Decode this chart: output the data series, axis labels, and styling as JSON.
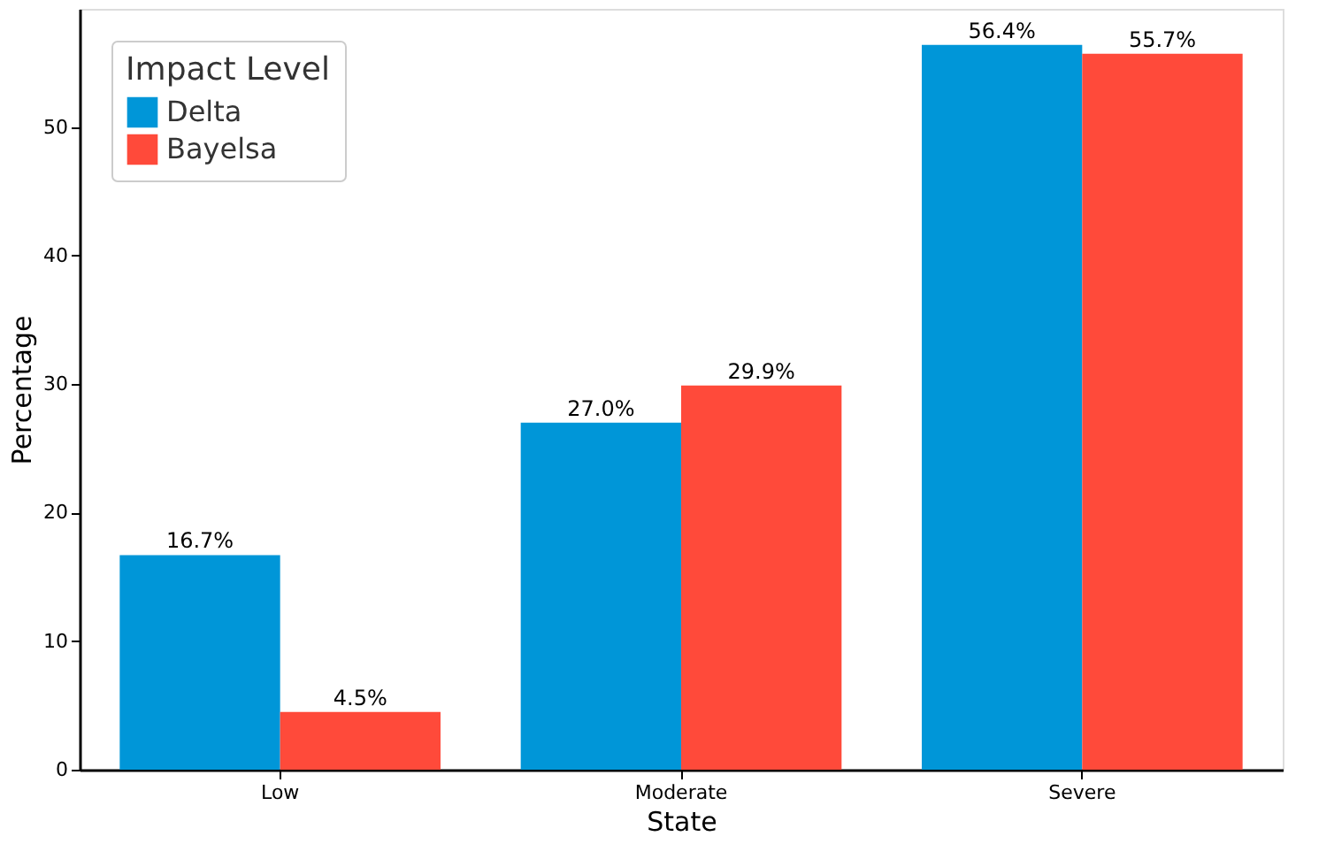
{
  "chart_data": {
    "type": "bar",
    "xlabel": "State",
    "ylabel": "Percentage",
    "legend_title": "Impact Level",
    "categories": [
      "Low",
      "Moderate",
      "Severe"
    ],
    "series": [
      {
        "name": "Delta",
        "color": "#0096d8",
        "values": [
          16.7,
          27.0,
          56.4
        ],
        "value_labels": [
          "16.7%",
          "27.0%",
          "56.4%"
        ]
      },
      {
        "name": "Bayelsa",
        "color": "#ff4a3a",
        "values": [
          4.5,
          29.9,
          55.7
        ],
        "value_labels": [
          "4.5%",
          "29.9%",
          "55.7%"
        ]
      }
    ],
    "ylim": [
      0,
      59.2
    ],
    "yticks": [
      0,
      10,
      20,
      30,
      40,
      50
    ],
    "grid": false,
    "legend": "top left"
  }
}
